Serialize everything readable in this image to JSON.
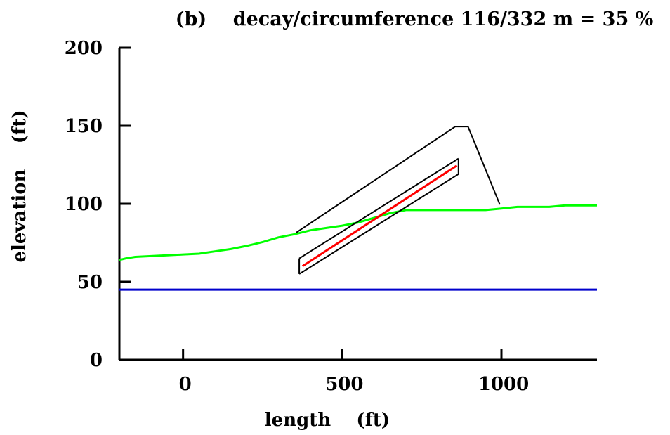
{
  "chart_data": {
    "type": "line",
    "title": "(b)    decay/circumference 116/332 m = 35 %",
    "xlabel": "length    (ft)",
    "ylabel": "elevation    (ft)",
    "xlim": [
      -200,
      1300
    ],
    "ylim": [
      0,
      200
    ],
    "x_ticks": [
      0,
      500,
      1000
    ],
    "x_tick_labels": [
      "0",
      "500",
      "1000"
    ],
    "y_ticks": [
      0,
      50,
      100,
      150,
      200
    ],
    "y_tick_labels": [
      "0",
      "50",
      "100",
      "150",
      "200"
    ],
    "grid": false,
    "legend": "none",
    "series": [
      {
        "color": "#00ff00",
        "values": [
          [
            -200,
            64
          ],
          [
            -180,
            65
          ],
          [
            -150,
            66
          ],
          [
            -100,
            66.5
          ],
          [
            -50,
            67
          ],
          [
            0,
            67.5
          ],
          [
            50,
            68
          ],
          [
            100,
            69.5
          ],
          [
            150,
            71
          ],
          [
            200,
            73
          ],
          [
            250,
            75.5
          ],
          [
            300,
            78.5
          ],
          [
            350,
            80.5
          ],
          [
            400,
            83
          ],
          [
            450,
            84.5
          ],
          [
            500,
            86
          ],
          [
            550,
            88
          ],
          [
            600,
            91
          ],
          [
            650,
            94
          ],
          [
            700,
            96
          ],
          [
            750,
            96
          ],
          [
            800,
            96
          ],
          [
            850,
            96
          ],
          [
            900,
            96
          ],
          [
            950,
            96
          ],
          [
            1000,
            97
          ],
          [
            1050,
            98
          ],
          [
            1100,
            98
          ],
          [
            1150,
            98
          ],
          [
            1200,
            99
          ],
          [
            1250,
            99
          ],
          [
            1300,
            99
          ]
        ]
      },
      {
        "color": "#0000cc",
        "values": [
          [
            -200,
            45
          ],
          [
            1300,
            45
          ]
        ]
      },
      {
        "color": "#000000",
        "values": [
          [
            355,
            81.5
          ],
          [
            855,
            149.5
          ],
          [
            895,
            149.5
          ],
          [
            995,
            99.5
          ]
        ]
      },
      {
        "color": "#000000",
        "values": [
          [
            365,
            55
          ],
          [
            865,
            119
          ]
        ]
      },
      {
        "color": "#000000",
        "values": [
          [
            365,
            65
          ],
          [
            865,
            129
          ]
        ]
      },
      {
        "color": "#000000",
        "values": [
          [
            365,
            55
          ],
          [
            365,
            65
          ]
        ]
      },
      {
        "color": "#000000",
        "values": [
          [
            865,
            119
          ],
          [
            865,
            129
          ]
        ]
      },
      {
        "color": "#ff0000",
        "values": [
          [
            375,
            60
          ],
          [
            860,
            124.5
          ]
        ]
      }
    ]
  }
}
